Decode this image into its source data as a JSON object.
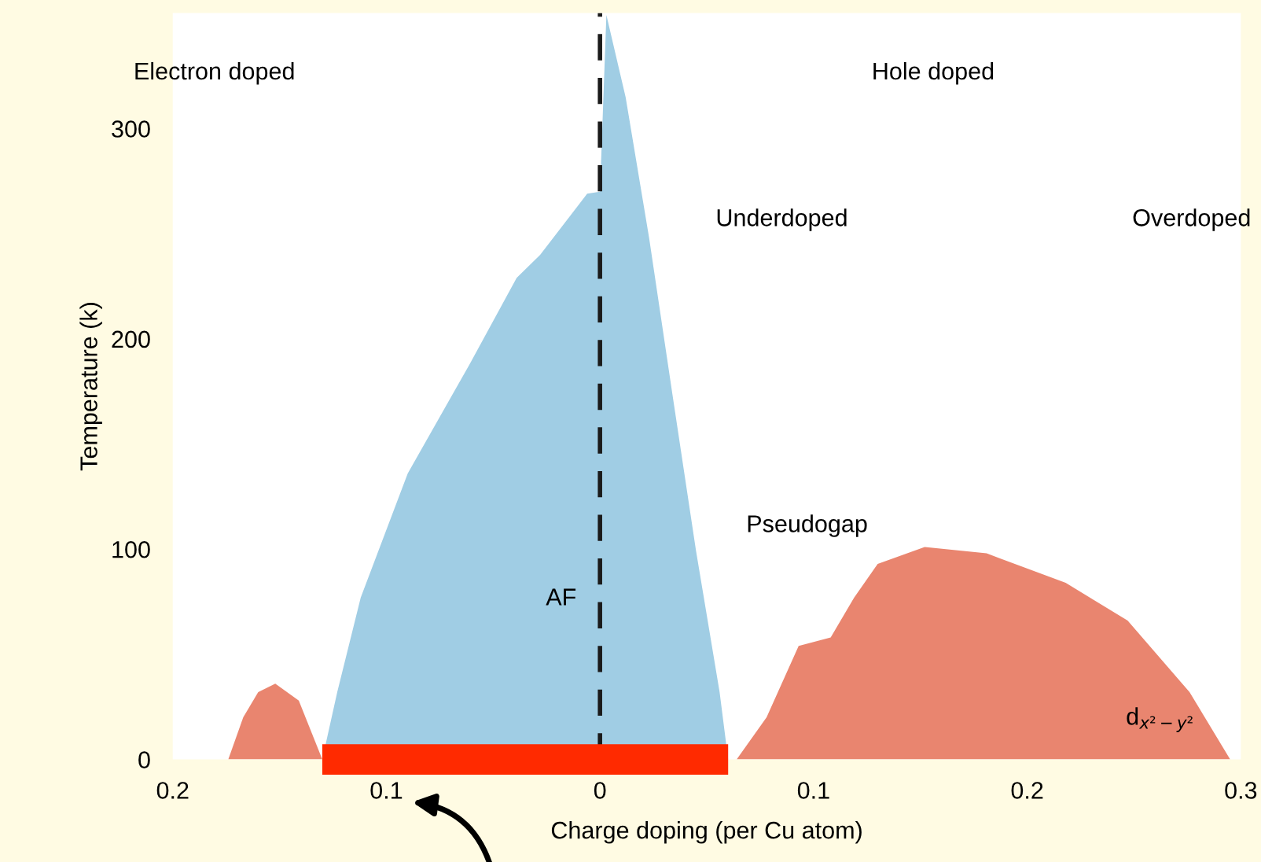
{
  "chart_data": {
    "type": "area",
    "xlabel": "Charge doping (per Cu atom)",
    "ylabel": "Temperature (k)",
    "xlim": [
      -0.2,
      0.3
    ],
    "xticks": [
      {
        "value": -0.2,
        "label": "0.2"
      },
      {
        "value": -0.1,
        "label": "0.1"
      },
      {
        "value": 0,
        "label": "0"
      },
      {
        "value": 0.1,
        "label": "0.1"
      },
      {
        "value": 0.2,
        "label": "0.2"
      },
      {
        "value": 0.3,
        "label": "0.3"
      }
    ],
    "ylim": [
      0,
      355
    ],
    "yticks": [
      0,
      100,
      200,
      300
    ],
    "grid": false,
    "legend": false,
    "series": [
      {
        "color": "#e9856f",
        "x": [
          -0.174,
          -0.167,
          -0.16,
          -0.152,
          -0.141,
          -0.13
        ],
        "values": [
          0,
          20,
          32,
          36,
          28,
          0
        ]
      },
      {
        "color": "#a0cde4",
        "x": [
          -0.13,
          -0.123,
          -0.112,
          -0.09,
          -0.061,
          -0.039,
          -0.028,
          -0.006,
          0,
          0.003,
          0.012,
          0.023,
          0.034,
          0.045,
          0.056,
          0.06
        ],
        "values": [
          0,
          32,
          77,
          136,
          188,
          229,
          240,
          269,
          270,
          354,
          315,
          248,
          173,
          99,
          32,
          0
        ]
      },
      {
        "color": "#e9856f",
        "x": [
          0.064,
          0.078,
          0.093,
          0.108,
          0.119,
          0.13,
          0.152,
          0.181,
          0.218,
          0.247,
          0.276,
          0.295
        ],
        "values": [
          0,
          20,
          54,
          58,
          77,
          93,
          101,
          98,
          84,
          66,
          32,
          0
        ]
      },
      {
        "type": "line",
        "color": "#ff2a00",
        "x": [
          -0.13,
          0.06
        ],
        "values": [
          0,
          0
        ]
      }
    ],
    "ref_lines": [
      {
        "axis": "x",
        "value": 0,
        "color": "#1a1a1a",
        "line_style": "dashed"
      }
    ],
    "annotations": [
      "Electron doped",
      "Hole doped",
      "Underdoped",
      "Overdoped",
      "Pseudogap",
      "AF",
      "d$_{x²−y²}$"
    ]
  }
}
